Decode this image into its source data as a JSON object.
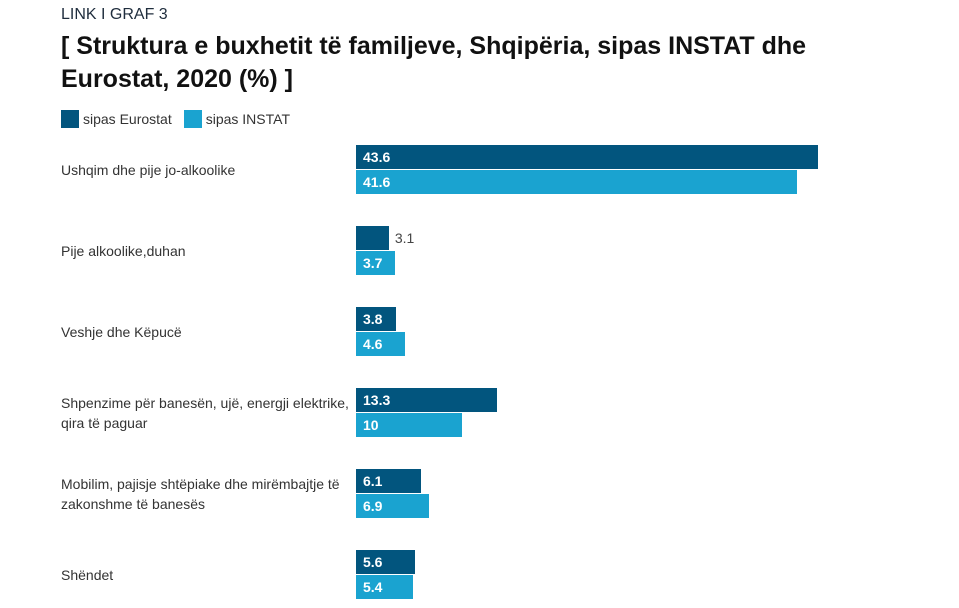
{
  "kicker": "LINK I GRAF 3",
  "chart_data": {
    "type": "bar",
    "orientation": "horizontal",
    "title": "[ Struktura e buxhetit të familjeve, Shqipëria, sipas INSTAT dhe Eurostat, 2020 (%) ]",
    "categories": [
      "Ushqim dhe pije jo-alkoolike",
      "Pije alkoolike,duhan",
      "Veshje dhe Këpucë",
      "Shpenzime për banesën, ujë, energji elektrike, qira të paguar",
      "Mobilim, pajisje shtëpiake dhe mirëmbajtje të zakonshme të banesës",
      "Shëndet"
    ],
    "series": [
      {
        "name": "sipas Eurostat",
        "color": "#02557e",
        "values": [
          43.6,
          3.1,
          3.8,
          13.3,
          6.1,
          5.6
        ],
        "labels": [
          "43.6",
          "3.1",
          "3.8",
          "13.3",
          "6.1",
          "5.6"
        ]
      },
      {
        "name": "sipas INSTAT",
        "color": "#1aa3d0",
        "values": [
          41.6,
          3.7,
          4.6,
          10,
          6.9,
          5.4
        ],
        "labels": [
          "41.6",
          "3.7",
          "4.6",
          "10",
          "6.9",
          "5.4"
        ]
      }
    ],
    "xlim": [
      0,
      50
    ],
    "legend": "top-left",
    "grid": false
  }
}
